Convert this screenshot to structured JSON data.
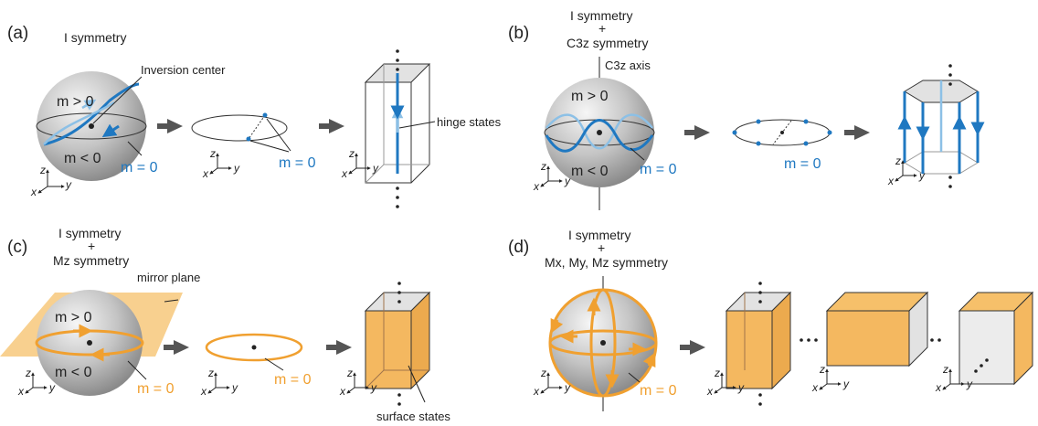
{
  "panels": [
    {
      "id": "a",
      "label": "(a)",
      "symmetry_lines": [
        "I symmetry"
      ]
    },
    {
      "id": "b",
      "label": "(b)",
      "symmetry_lines": [
        "I symmetry",
        "+",
        "C3z symmetry"
      ]
    },
    {
      "id": "c",
      "label": "(c)",
      "symmetry_lines": [
        "I symmetry",
        "+",
        "Mz  symmetry"
      ]
    },
    {
      "id": "d",
      "label": "(d)",
      "symmetry_lines": [
        "I symmetry",
        "+",
        "Mx, My, Mz symmetry"
      ]
    }
  ],
  "annotations": {
    "inversion_center": "Inversion center",
    "hinge_states": "hinge states",
    "c3z_axis": "C3z axis",
    "mirror_plane": "mirror plane",
    "surface_states": "surface states",
    "m_pos": "m > 0",
    "m_neg": "m < 0",
    "m_zero": "m = 0"
  },
  "axes": {
    "x": "x",
    "y": "y",
    "z": "z"
  },
  "colors": {
    "blue": "#1f78c1",
    "light_blue": "#8cc0e6",
    "orange": "#f0a030",
    "orange_fill": "#f6c06a",
    "sphere": "#b8b8b8",
    "arrow": "#555555"
  }
}
